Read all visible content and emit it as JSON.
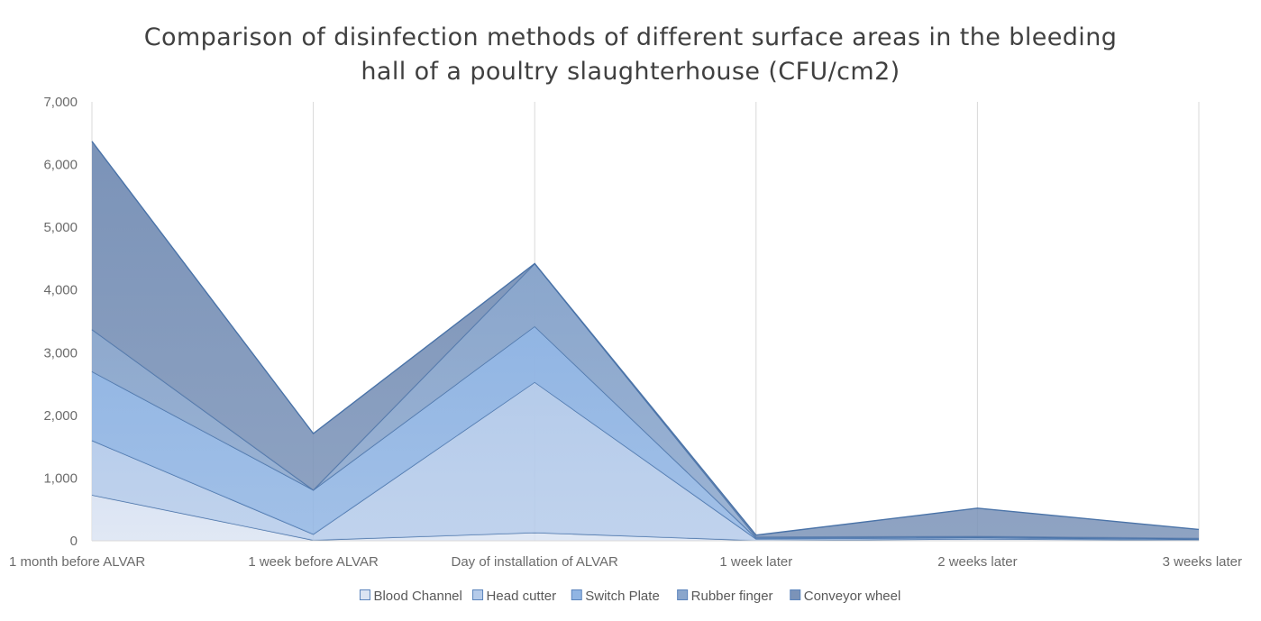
{
  "chart_data": {
    "type": "area",
    "stacked": true,
    "title_lines": [
      "Comparison of disinfection methods of different surface areas in the bleeding",
      "hall of a poultry slaughterhouse (CFU/cm2)"
    ],
    "categories": [
      "1 month before ALVAR",
      "1 week before ALVAR",
      "Day of installation of ALVAR",
      "1 week later",
      "2 weeks later",
      "3 weeks later"
    ],
    "series": [
      {
        "name": "Blood Channel",
        "values": [
          730,
          10,
          130,
          5,
          30,
          10
        ],
        "color": "#dbe4f3"
      },
      {
        "name": "Head cutter",
        "values": [
          870,
          95,
          2400,
          25,
          20,
          10
        ],
        "color": "#b5cbea"
      },
      {
        "name": "Switch Plate",
        "values": [
          1100,
          705,
          890,
          15,
          10,
          10
        ],
        "color": "#91b5e3"
      },
      {
        "name": "Rubber finger",
        "values": [
          670,
          0,
          1000,
          15,
          10,
          10
        ],
        "color": "#8aa6cc"
      },
      {
        "name": "Conveyor wheel",
        "values": [
          3000,
          900,
          0,
          30,
          450,
          140
        ],
        "color": "#7b93b8"
      }
    ],
    "ylim": [
      0,
      7000
    ],
    "yticks": [
      0,
      1000,
      2000,
      3000,
      4000,
      5000,
      6000,
      7000
    ],
    "ytick_labels": [
      "0",
      "1,000",
      "2,000",
      "3,000",
      "4,000",
      "5,000",
      "6,000",
      "7,000"
    ],
    "grid": "vertical",
    "legend_position": "bottom"
  }
}
